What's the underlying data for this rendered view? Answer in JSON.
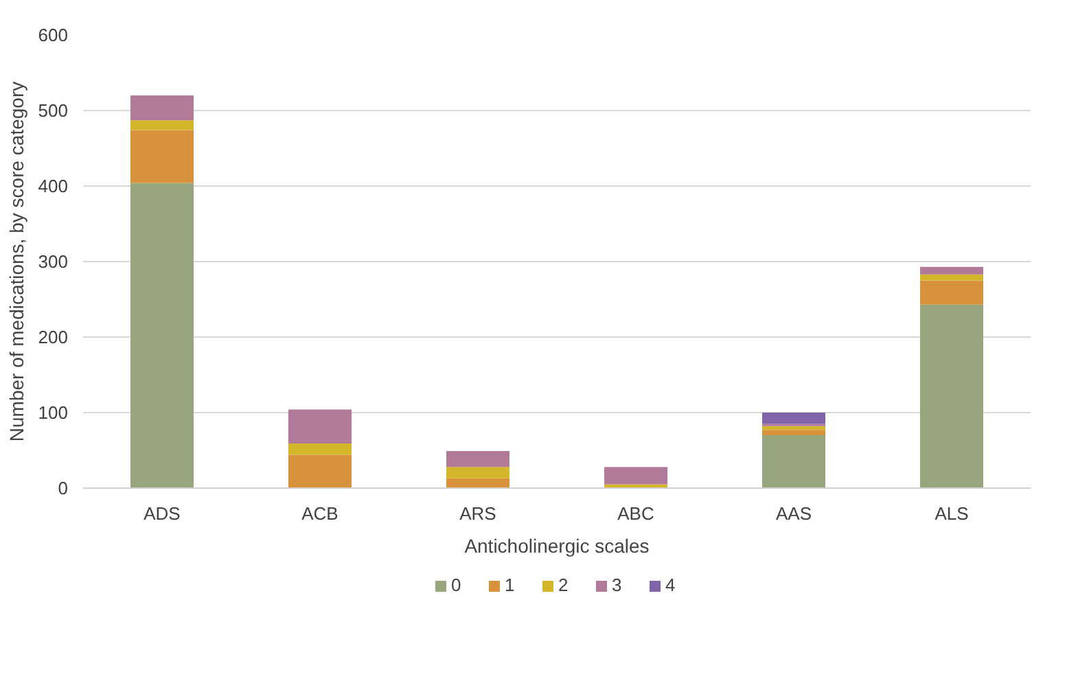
{
  "chart_data": {
    "type": "bar",
    "stacked": true,
    "xlabel": "Anticholinergic scales",
    "ylabel": "Number of medications, by score category",
    "categories": [
      "ADS",
      "ACB",
      "ARS",
      "ABC",
      "AAS",
      "ALS"
    ],
    "series": [
      {
        "name": "0",
        "color": "#97a67d",
        "values": [
          404,
          0,
          0,
          0,
          70,
          243
        ]
      },
      {
        "name": "1",
        "color": "#d8923c",
        "values": [
          70,
          44,
          13,
          null,
          7,
          32
        ]
      },
      {
        "name": "2",
        "color": "#d4b62a",
        "values": [
          13,
          15,
          15,
          5,
          5,
          8
        ]
      },
      {
        "name": "3",
        "color": "#b07a98",
        "values": [
          33,
          45,
          21,
          23,
          3,
          10
        ]
      },
      {
        "name": "4",
        "color": "#8064a8",
        "values": [
          0,
          0,
          0,
          0,
          15,
          0
        ]
      }
    ],
    "ylim": [
      0,
      600
    ],
    "yticks": [
      0,
      100,
      200,
      300,
      400,
      500,
      600
    ],
    "grid": "y",
    "legend": "bottom"
  }
}
